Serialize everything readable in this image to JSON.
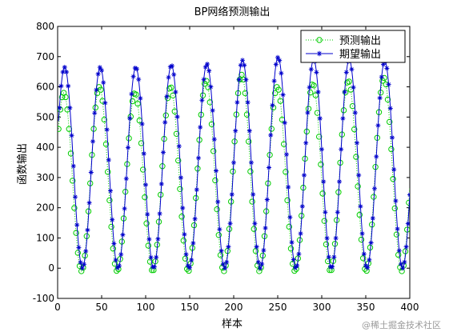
{
  "chart_data": {
    "type": "line",
    "title": "BP网络预测输出",
    "xlabel": "样本",
    "ylabel": "函数输出",
    "xlim": [
      0,
      400
    ],
    "ylim": [
      -100,
      800
    ],
    "xticks": [
      0,
      50,
      100,
      150,
      200,
      250,
      300,
      350,
      400
    ],
    "yticks": [
      -100,
      0,
      100,
      200,
      300,
      400,
      500,
      600,
      700,
      800
    ],
    "grid": false,
    "legend_position": "top-right",
    "series": [
      {
        "name": "预测输出",
        "color": "#00cc00",
        "style": "dotted line with circle markers",
        "period": 40.4,
        "phase": 7,
        "peaks": [
          580,
          600,
          580,
          600,
          620,
          640,
          600,
          610,
          620,
          630
        ],
        "trough": -10
      },
      {
        "name": "期望输出",
        "color": "#0000cc",
        "style": "solid line with star markers",
        "period": 40.4,
        "phase": 8,
        "peaks": [
          665,
          665,
          665,
          672,
          676,
          688,
          698,
          690,
          690,
          685
        ],
        "trough": 0
      }
    ]
  },
  "watermark": "@稀土掘金技术社区"
}
